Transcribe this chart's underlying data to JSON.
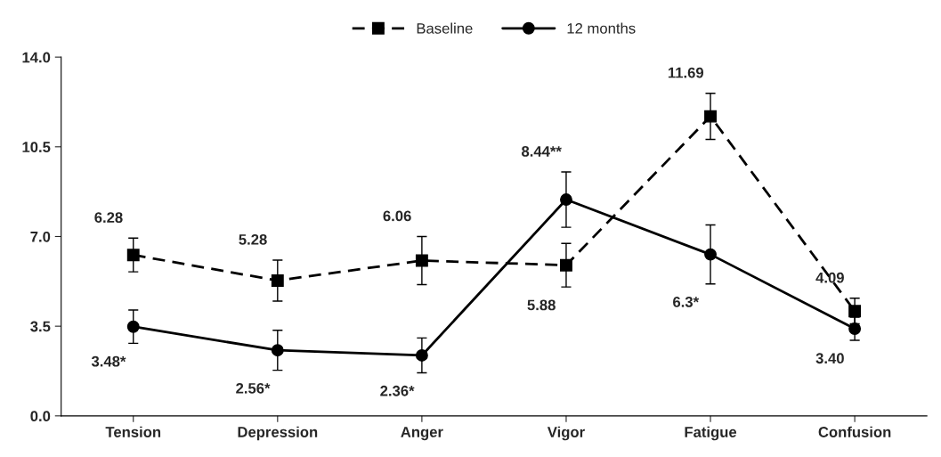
{
  "chart_data": {
    "type": "line",
    "categories": [
      "Tension",
      "Depression",
      "Anger",
      "Vigor",
      "Fatigue",
      "Confusion"
    ],
    "series": [
      {
        "name": "Baseline",
        "color": "#000000",
        "marker": "square",
        "line_style": "dashed",
        "values": [
          6.28,
          5.28,
          6.06,
          5.88,
          11.69,
          4.09
        ],
        "errors": [
          0.66,
          0.8,
          0.94,
          0.85,
          0.9,
          0.5
        ],
        "value_labels": [
          "6.28",
          "5.28",
          "6.06",
          "5.88",
          "11.69",
          "4.09"
        ]
      },
      {
        "name": "12 months",
        "color": "#000000",
        "marker": "circle",
        "line_style": "solid",
        "values": [
          3.48,
          2.56,
          2.36,
          8.44,
          6.3,
          3.4
        ],
        "errors": [
          0.65,
          0.78,
          0.68,
          1.08,
          1.15,
          0.45
        ],
        "value_labels": [
          "3.48*",
          "2.56*",
          "2.36*",
          "8.44**",
          "6.3*",
          "3.40"
        ]
      }
    ],
    "ylim": [
      0,
      14
    ],
    "yticks": [
      {
        "value": 0,
        "label": "0.0"
      },
      {
        "value": 3.5,
        "label": "3.5"
      },
      {
        "value": 7,
        "label": "7.0"
      },
      {
        "value": 10.5,
        "label": "10.5"
      },
      {
        "value": 14,
        "label": "14.0"
      }
    ],
    "grid": false,
    "legend": "top"
  }
}
